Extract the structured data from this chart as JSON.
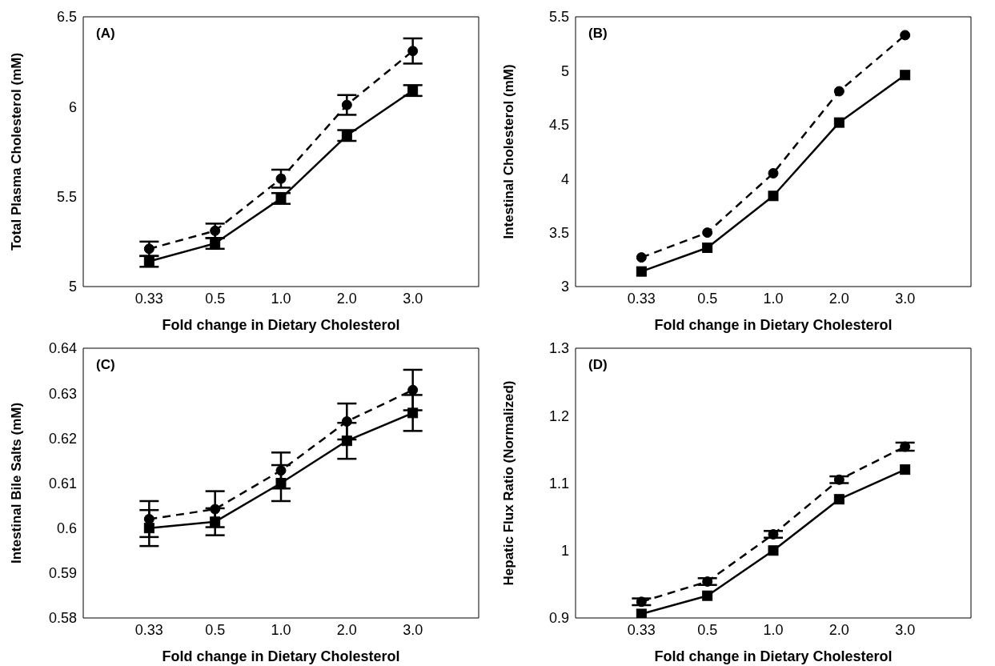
{
  "chart_data": [
    {
      "type": "line",
      "title": "(A)",
      "xlabel": "Fold change in Dietary Cholesterol",
      "ylabel": "Total Plasma Cholesterol (mM)",
      "categories": [
        "0.33",
        "0.5",
        "1.0",
        "2.0",
        "3.0"
      ],
      "ylim": [
        5,
        6.5
      ],
      "yticks": [
        5,
        5.5,
        6,
        6.5
      ],
      "series": [
        {
          "color": "#000000",
          "line_style": "dashed",
          "marker": "circle",
          "values": [
            5.21,
            5.31,
            5.6,
            6.01,
            6.31
          ],
          "errors": [
            0.04,
            0.04,
            0.05,
            0.055,
            0.07
          ]
        },
        {
          "color": "#000000",
          "line_style": "solid",
          "marker": "square",
          "values": [
            5.14,
            5.24,
            5.49,
            5.84,
            6.09
          ],
          "errors": [
            0.03,
            0.03,
            0.03,
            0.03,
            0.03
          ]
        }
      ]
    },
    {
      "type": "line",
      "title": "(B)",
      "xlabel": "Fold change in Dietary Cholesterol",
      "ylabel": "Intestinal Cholesterol (mM)",
      "categories": [
        "0.33",
        "0.5",
        "1.0",
        "2.0",
        "3.0"
      ],
      "ylim": [
        3,
        5.5
      ],
      "yticks": [
        3,
        3.5,
        4,
        4.5,
        5,
        5.5
      ],
      "series": [
        {
          "color": "#000000",
          "line_style": "dashed",
          "marker": "circle",
          "values": [
            3.27,
            3.5,
            4.05,
            4.81,
            5.33
          ]
        },
        {
          "color": "#000000",
          "line_style": "solid",
          "marker": "square",
          "values": [
            3.14,
            3.36,
            3.84,
            4.52,
            4.96
          ]
        }
      ]
    },
    {
      "type": "line",
      "title": "(C)",
      "xlabel": "Fold change in Dietary Cholesterol",
      "ylabel": "Intestinal Bile Salts (mM)",
      "categories": [
        "0.33",
        "0.5",
        "1.0",
        "2.0",
        "3.0"
      ],
      "ylim": [
        0.58,
        0.64
      ],
      "yticks": [
        0.58,
        0.59,
        0.6,
        0.61,
        0.62,
        0.63,
        0.64
      ],
      "series": [
        {
          "color": "#000000",
          "line_style": "dashed",
          "marker": "circle",
          "values": [
            0.602,
            0.6042,
            0.6128,
            0.6237,
            0.6307
          ],
          "errors": [
            0.004,
            0.004,
            0.004,
            0.004,
            0.0045
          ]
        },
        {
          "color": "#000000",
          "line_style": "solid",
          "marker": "square",
          "values": [
            0.6,
            0.6014,
            0.61,
            0.6194,
            0.6256
          ],
          "errors": [
            0.004,
            0.003,
            0.004,
            0.004,
            0.004
          ]
        }
      ]
    },
    {
      "type": "line",
      "title": "(D)",
      "xlabel": "Fold change in Dietary Cholesterol",
      "ylabel": "Hepatic Flux Ratio (Normalized)",
      "categories": [
        "0.33",
        "0.5",
        "1.0",
        "2.0",
        "3.0"
      ],
      "ylim": [
        0.9,
        1.3
      ],
      "yticks": [
        0.9,
        1,
        1.1,
        1.2,
        1.3
      ],
      "series": [
        {
          "color": "#000000",
          "line_style": "dashed",
          "marker": "circle",
          "values": [
            0.924,
            0.954,
            1.024,
            1.105,
            1.154
          ],
          "errors": [
            0.005,
            0.005,
            0.005,
            0.005,
            0.006
          ]
        },
        {
          "color": "#000000",
          "line_style": "solid",
          "marker": "square",
          "values": [
            0.906,
            0.933,
            1.0,
            1.076,
            1.12
          ]
        }
      ]
    }
  ]
}
